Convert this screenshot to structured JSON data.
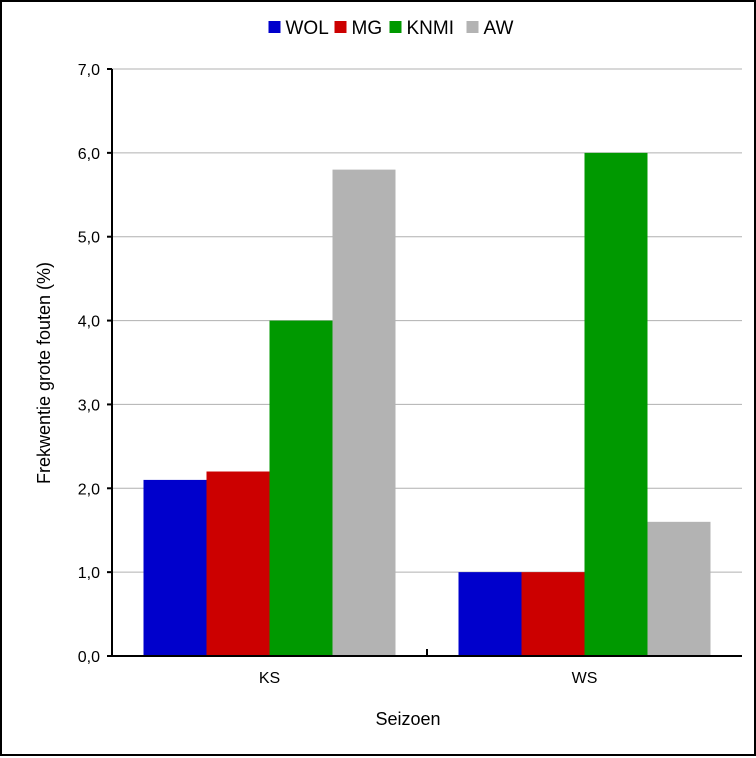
{
  "chart_data": {
    "type": "bar",
    "categories": [
      "KS",
      "WS"
    ],
    "series": [
      {
        "name": "WOL",
        "color": "#0000cc",
        "values": [
          2.1,
          1.0
        ]
      },
      {
        "name": "MG",
        "color": "#cc0000",
        "values": [
          2.2,
          1.0
        ]
      },
      {
        "name": "KNMI",
        "color": "#009900",
        "values": [
          4.0,
          6.0
        ]
      },
      {
        "name": "AW",
        "color": "#b3b3b3",
        "values": [
          5.8,
          1.6
        ]
      }
    ],
    "xlabel": "Seizoen",
    "ylabel": "Frekwentie grote fouten (%)",
    "ylim": [
      0,
      7
    ],
    "yticks": [
      "0,0",
      "1,0",
      "2,0",
      "3,0",
      "4,0",
      "5,0",
      "6,0",
      "7,0"
    ],
    "grid": true,
    "legend_position": "top-center"
  }
}
